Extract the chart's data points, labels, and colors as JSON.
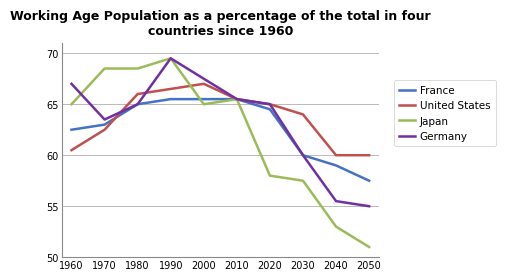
{
  "title": "Working Age Population as a percentage of the total in four\ncountries since 1960",
  "years": [
    1960,
    1970,
    1980,
    1990,
    2000,
    2010,
    2020,
    2030,
    2040,
    2050
  ],
  "france": [
    62.5,
    63.0,
    65.0,
    65.5,
    65.5,
    65.5,
    64.5,
    60.0,
    59.0,
    57.5
  ],
  "united_states": [
    60.5,
    62.5,
    66.0,
    66.5,
    67.0,
    65.5,
    65.0,
    64.0,
    60.0,
    60.0
  ],
  "japan": [
    65.0,
    68.5,
    68.5,
    69.5,
    65.0,
    65.5,
    58.0,
    57.5,
    53.0,
    51.0
  ],
  "germany": [
    67.0,
    63.5,
    65.0,
    69.5,
    67.5,
    65.5,
    65.0,
    60.0,
    55.5,
    55.0
  ],
  "france_color": "#4472c4",
  "us_color": "#c0504d",
  "japan_color": "#9bbb59",
  "germany_color": "#7030a0",
  "ylim": [
    50,
    71
  ],
  "yticks": [
    50,
    55,
    60,
    65,
    70
  ],
  "xlim": [
    1957,
    2053
  ],
  "xticks": [
    1960,
    1970,
    1980,
    1990,
    2000,
    2010,
    2020,
    2030,
    2040,
    2050
  ],
  "background_color": "#ffffff",
  "grid_color": "#b0b0b0",
  "linewidth": 1.8,
  "title_fontsize": 9,
  "tick_fontsize": 7,
  "legend_fontsize": 7.5
}
